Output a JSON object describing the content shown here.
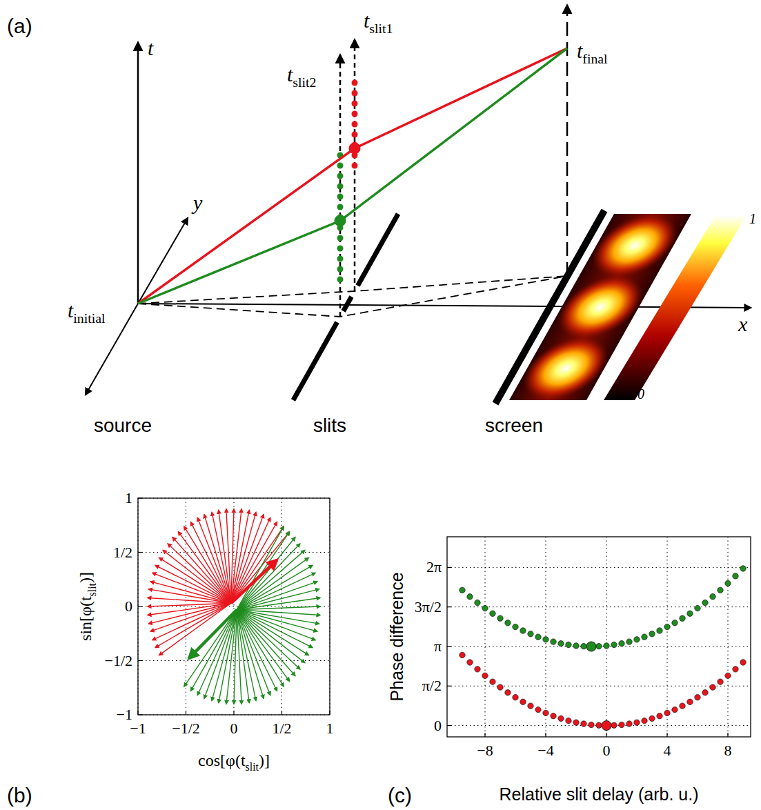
{
  "diagram": {
    "panel": "(a)",
    "axes": {
      "t": "t",
      "y": "y",
      "x": "x"
    },
    "times": {
      "initial": {
        "text": "t",
        "sub": "initial"
      },
      "slit2": {
        "text": "t",
        "sub": "slit2"
      },
      "slit1": {
        "text": "t",
        "sub": "slit1"
      },
      "final": {
        "text": "t",
        "sub": "final"
      }
    },
    "regions": [
      "source",
      "slits",
      "screen"
    ],
    "paths": [
      {
        "color": "#e8141c"
      },
      {
        "color": "#1e8c1e"
      }
    ],
    "colorbar": {
      "range": [
        0,
        1
      ],
      "ticks": [
        0,
        1
      ]
    }
  },
  "chart_data": [
    {
      "type": "vector",
      "panel": "(b)",
      "x_label": {
        "text": "cos[φ(t",
        "sub": "slit",
        "tail": ")]"
      },
      "y_label": {
        "text": "sin[φ(t",
        "sub": "slit",
        "tail": ")]"
      },
      "xlim": [
        -1,
        1
      ],
      "ylim": [
        -1,
        1
      ],
      "xticks": [
        -1,
        {
          "value": -0.5,
          "label": "−1/2"
        },
        0,
        {
          "value": 0.5,
          "label": "1/2"
        },
        1
      ],
      "yticks": [
        -1,
        {
          "value": -0.5,
          "label": "−1/2"
        },
        0,
        {
          "value": 0.5,
          "label": "1/2"
        },
        1
      ],
      "grid": true,
      "series": [
        {
          "color": "#e8141c",
          "line_style": "thin",
          "origin": [
            -0.03,
            0.03
          ],
          "x": [
            0.58,
            0.52,
            0.45,
            0.38,
            0.31,
            0.23,
            0.16,
            0.08,
            0,
            -0.08,
            -0.16,
            -0.23,
            -0.31,
            -0.38,
            -0.45,
            -0.52,
            -0.58,
            -0.64,
            -0.69,
            -0.74,
            -0.78,
            -0.82,
            -0.85,
            -0.87,
            -0.89,
            -0.9,
            -0.9,
            -0.9,
            -0.89,
            -0.87,
            -0.85,
            -0.82,
            -0.78
          ],
          "values": [
            0.69,
            0.74,
            0.78,
            0.82,
            0.85,
            0.87,
            0.89,
            0.9,
            0.9,
            0.9,
            0.89,
            0.87,
            0.85,
            0.82,
            0.78,
            0.74,
            0.69,
            0.64,
            0.58,
            0.52,
            0.45,
            0.38,
            0.31,
            0.23,
            0.16,
            0.08,
            0,
            -0.08,
            -0.16,
            -0.23,
            -0.31,
            -0.38,
            -0.45
          ]
        },
        {
          "color": "#1e8c1e",
          "line_style": "thin",
          "origin": [
            0.03,
            -0.03
          ],
          "x": [
            0.52,
            0.58,
            0.64,
            0.69,
            0.74,
            0.78,
            0.82,
            0.85,
            0.87,
            0.89,
            0.9,
            0.9,
            0.9,
            0.89,
            0.87,
            0.85,
            0.82,
            0.78,
            0.74,
            0.69,
            0.64,
            0.58,
            0.52,
            0.45,
            0.38,
            0.31,
            0.23,
            0.16,
            0.08,
            0,
            -0.08,
            -0.16,
            -0.23,
            -0.31,
            -0.38,
            -0.45,
            -0.52
          ],
          "values": [
            0.74,
            0.69,
            0.64,
            0.58,
            0.52,
            0.45,
            0.38,
            0.31,
            0.23,
            0.16,
            0.08,
            0,
            -0.08,
            -0.16,
            -0.23,
            -0.31,
            -0.38,
            -0.45,
            -0.52,
            -0.58,
            -0.64,
            -0.69,
            -0.74,
            -0.78,
            -0.82,
            -0.85,
            -0.87,
            -0.89,
            -0.9,
            -0.9,
            -0.9,
            -0.89,
            -0.87,
            -0.85,
            -0.82,
            -0.78,
            -0.74
          ]
        },
        {
          "color": "#e8141c",
          "line_style": "bold",
          "origin": [
            -0.03,
            0.03
          ],
          "x": [
            0.45
          ],
          "values": [
            0.43
          ]
        },
        {
          "color": "#1e8c1e",
          "line_style": "bold",
          "origin": [
            0.03,
            -0.03
          ],
          "x": [
            -0.47
          ],
          "values": [
            -0.48
          ]
        }
      ]
    },
    {
      "type": "scatter",
      "panel": "(c)",
      "x_label": "Relative slit delay (arb. u.)",
      "y_label": "Phase difference",
      "xlim": [
        -10.5,
        9.5
      ],
      "ylim": [
        -0.45,
        7.5
      ],
      "xticks": [
        -8,
        -4,
        0,
        4,
        8
      ],
      "yticks": [
        0,
        {
          "value": 1.5708,
          "label": "π/2"
        },
        {
          "value": 3.1416,
          "label": "π"
        },
        {
          "value": 4.7124,
          "label": "3π/2"
        },
        {
          "value": 6.2832,
          "label": "2π"
        }
      ],
      "grid": true,
      "series": [
        {
          "color": "#1e8c1e",
          "marker": "dot",
          "x": [
            -9.5,
            -9,
            -8.5,
            -8,
            -7.5,
            -7,
            -6.5,
            -6,
            -5.5,
            -5,
            -4.5,
            -4,
            -3.5,
            -3,
            -2.5,
            -2,
            -1.5,
            -1,
            -0.5,
            0,
            0.5,
            1,
            1.5,
            2,
            2.5,
            3,
            3.5,
            4,
            4.5,
            5,
            5.5,
            6,
            6.5,
            7,
            7.5,
            8,
            8.5,
            9
          ],
          "values": [
            5.38,
            5.12,
            4.88,
            4.66,
            4.45,
            4.26,
            4.08,
            3.92,
            3.77,
            3.64,
            3.52,
            3.42,
            3.33,
            3.26,
            3.21,
            3.17,
            3.15,
            3.14,
            3.15,
            3.17,
            3.21,
            3.26,
            3.33,
            3.42,
            3.52,
            3.64,
            3.77,
            3.92,
            4.08,
            4.26,
            4.45,
            4.66,
            4.88,
            5.12,
            5.38,
            5.65,
            5.94,
            6.24
          ]
        },
        {
          "color": "#e8141c",
          "marker": "dot",
          "x": [
            -9.5,
            -9,
            -8.5,
            -8,
            -7.5,
            -7,
            -6.5,
            -6,
            -5.5,
            -5,
            -4.5,
            -4,
            -3.5,
            -3,
            -2.5,
            -2,
            -1.5,
            -1,
            -0.5,
            0,
            0.5,
            1,
            1.5,
            2,
            2.5,
            3,
            3.5,
            4,
            4.5,
            5,
            5.5,
            6,
            6.5,
            7,
            7.5,
            8,
            8.5,
            9
          ],
          "values": [
            2.8,
            2.51,
            2.24,
            1.98,
            1.74,
            1.52,
            1.31,
            1.12,
            0.94,
            0.78,
            0.63,
            0.5,
            0.38,
            0.28,
            0.19,
            0.12,
            0.07,
            0.03,
            0.01,
            0,
            0.01,
            0.03,
            0.07,
            0.12,
            0.19,
            0.28,
            0.38,
            0.5,
            0.63,
            0.78,
            0.94,
            1.12,
            1.31,
            1.52,
            1.74,
            1.98,
            2.24,
            2.51
          ]
        },
        {
          "color": "#1e8c1e",
          "marker": "large",
          "x": [
            -1
          ],
          "values": [
            3.14
          ]
        },
        {
          "color": "#e8141c",
          "marker": "large",
          "x": [
            0
          ],
          "values": [
            0
          ]
        }
      ]
    }
  ]
}
